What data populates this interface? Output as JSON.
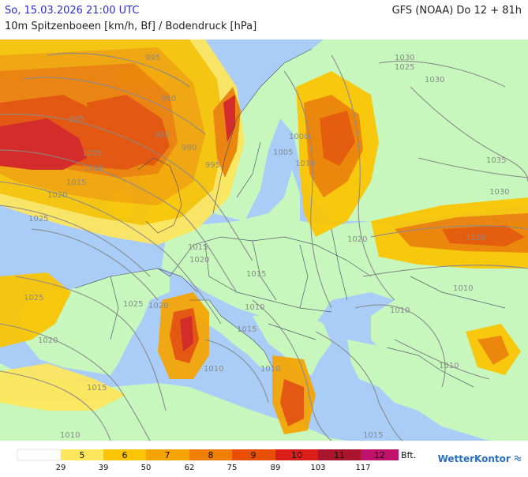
{
  "header": {
    "datetime": "So, 15.03.2026 21:00 UTC",
    "model": "GFS (NOAA) Do 12 + 81h",
    "subtitle": "10m Spitzenboeen [km/h, Bf] / Bodendruck [hPa]"
  },
  "colors": {
    "sea": "#a9cdf7",
    "land": "#c8f7be",
    "bf5": "#ffe65a",
    "bf6": "#fcc500",
    "bf7": "#f6a400",
    "bf8": "#f07e00",
    "bf9": "#e85000",
    "bf10": "#d81e1a",
    "bf11": "#a8152c",
    "bf12": "#c0126a",
    "isobar": "#8a8a8a",
    "brand": "#2a6fbf"
  },
  "isobars": [
    {
      "label": "995"
    },
    {
      "label": "980"
    },
    {
      "label": "995"
    },
    {
      "label": "990"
    },
    {
      "label": "1005"
    },
    {
      "label": "1010"
    },
    {
      "label": "990"
    },
    {
      "label": "995"
    },
    {
      "label": "1015"
    },
    {
      "label": "1020"
    },
    {
      "label": "1025"
    },
    {
      "label": "1030"
    },
    {
      "label": "1025"
    },
    {
      "label": "1030"
    },
    {
      "label": "1000"
    },
    {
      "label": "1005"
    },
    {
      "label": "1010"
    },
    {
      "label": "1035"
    },
    {
      "label": "1030"
    },
    {
      "label": "1020"
    },
    {
      "label": "1019"
    },
    {
      "label": "1015"
    },
    {
      "label": "1020"
    },
    {
      "label": "1015"
    },
    {
      "label": "1010"
    },
    {
      "label": "1010"
    },
    {
      "label": "1025"
    },
    {
      "label": "1020"
    },
    {
      "label": "1025"
    },
    {
      "label": "1020"
    },
    {
      "label": "1015"
    },
    {
      "label": "1010"
    },
    {
      "label": "1015"
    },
    {
      "label": "1015"
    },
    {
      "label": "1010"
    },
    {
      "label": "1010"
    },
    {
      "label": "1010"
    },
    {
      "label": "1010"
    }
  ],
  "legend": {
    "bft_labels": [
      "5",
      "6",
      "7",
      "8",
      "9",
      "10",
      "11",
      "12"
    ],
    "kmh_labels": [
      "29",
      "39",
      "50",
      "62",
      "75",
      "89",
      "103",
      "117"
    ],
    "unit": "Bft.",
    "brand": "WetterKontor"
  }
}
